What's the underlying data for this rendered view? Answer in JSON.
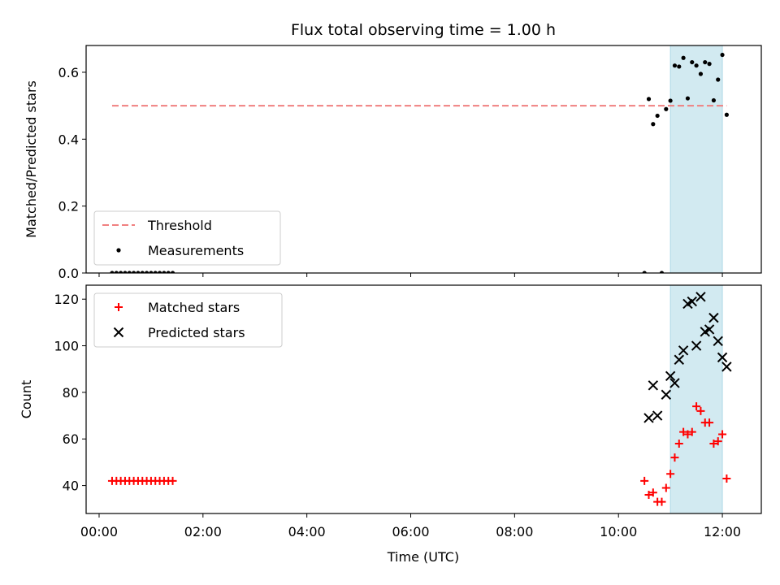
{
  "chart_data": {
    "title": "Flux total observing time = 1.00 h",
    "xlabel": "Time (UTC)",
    "x_ticks": [
      "00:00",
      "02:00",
      "04:00",
      "06:00",
      "08:00",
      "10:00",
      "12:00"
    ],
    "xlim": [
      "23:45",
      "12:45"
    ],
    "highlight_window": [
      "11:00",
      "12:00"
    ],
    "highlight_color": "#add8e6",
    "panels": [
      {
        "type": "scatter",
        "ylabel": "Matched/Predicted stars",
        "ylim": [
          0,
          0.68
        ],
        "y_ticks": [
          "0.0",
          "0.2",
          "0.4",
          "0.6"
        ],
        "legend_position": "lower left",
        "threshold": {
          "name": "Threshold",
          "value": 0.5,
          "x_range": [
            "00:15",
            "12:05"
          ],
          "color": "#f08080"
        },
        "series": [
          {
            "name": "Measurements",
            "color": "#000000",
            "marker": "dot",
            "points": [
              [
                "00:15",
                0
              ],
              [
                "00:20",
                0
              ],
              [
                "00:25",
                0
              ],
              [
                "00:30",
                0
              ],
              [
                "00:35",
                0
              ],
              [
                "00:40",
                0
              ],
              [
                "00:45",
                0
              ],
              [
                "00:50",
                0
              ],
              [
                "00:55",
                0
              ],
              [
                "01:00",
                0
              ],
              [
                "01:05",
                0
              ],
              [
                "01:10",
                0
              ],
              [
                "01:15",
                0
              ],
              [
                "01:20",
                0
              ],
              [
                "01:25",
                0
              ],
              [
                "10:30",
                0
              ],
              [
                "10:50",
                0
              ],
              [
                "10:35",
                0.52
              ],
              [
                "10:40",
                0.445
              ],
              [
                "10:45",
                0.47
              ],
              [
                "10:55",
                0.49
              ],
              [
                "11:00",
                0.515
              ],
              [
                "11:05",
                0.62
              ],
              [
                "11:10",
                0.617
              ],
              [
                "11:15",
                0.643
              ],
              [
                "11:20",
                0.522
              ],
              [
                "11:25",
                0.63
              ],
              [
                "11:30",
                0.62
              ],
              [
                "11:35",
                0.595
              ],
              [
                "11:40",
                0.63
              ],
              [
                "11:45",
                0.625
              ],
              [
                "11:50",
                0.516
              ],
              [
                "11:55",
                0.578
              ],
              [
                "12:00",
                0.652
              ],
              [
                "12:05",
                0.473
              ]
            ]
          }
        ]
      },
      {
        "type": "scatter",
        "ylabel": "Count",
        "ylim": [
          28,
          126
        ],
        "y_ticks": [
          "40",
          "60",
          "80",
          "100",
          "120"
        ],
        "legend_position": "upper left",
        "series": [
          {
            "name": "Matched stars",
            "color": "#ff0000",
            "marker": "plus",
            "points": [
              [
                "00:15",
                42
              ],
              [
                "00:20",
                42
              ],
              [
                "00:25",
                42
              ],
              [
                "00:30",
                42
              ],
              [
                "00:35",
                42
              ],
              [
                "00:40",
                42
              ],
              [
                "00:45",
                42
              ],
              [
                "00:50",
                42
              ],
              [
                "00:55",
                42
              ],
              [
                "01:00",
                42
              ],
              [
                "01:05",
                42
              ],
              [
                "01:10",
                42
              ],
              [
                "01:15",
                42
              ],
              [
                "01:20",
                42
              ],
              [
                "01:25",
                42
              ],
              [
                "10:30",
                42
              ],
              [
                "10:35",
                36
              ],
              [
                "10:40",
                37
              ],
              [
                "10:45",
                33
              ],
              [
                "10:50",
                33
              ],
              [
                "10:55",
                39
              ],
              [
                "11:00",
                45
              ],
              [
                "11:05",
                52
              ],
              [
                "11:10",
                58
              ],
              [
                "11:15",
                63
              ],
              [
                "11:20",
                62
              ],
              [
                "11:25",
                63
              ],
              [
                "11:30",
                74
              ],
              [
                "11:35",
                72
              ],
              [
                "11:40",
                67
              ],
              [
                "11:45",
                67
              ],
              [
                "11:50",
                58
              ],
              [
                "11:55",
                59
              ],
              [
                "12:00",
                62
              ],
              [
                "12:05",
                43
              ]
            ]
          },
          {
            "name": "Predicted stars",
            "color": "#000000",
            "marker": "x",
            "points": [
              [
                "10:35",
                69
              ],
              [
                "10:40",
                83
              ],
              [
                "10:45",
                70
              ],
              [
                "10:55",
                79
              ],
              [
                "11:00",
                87
              ],
              [
                "11:05",
                84
              ],
              [
                "11:10",
                94
              ],
              [
                "11:15",
                98
              ],
              [
                "11:20",
                118
              ],
              [
                "11:25",
                119
              ],
              [
                "11:30",
                100
              ],
              [
                "11:35",
                121
              ],
              [
                "11:40",
                106
              ],
              [
                "11:45",
                107
              ],
              [
                "11:50",
                112
              ],
              [
                "11:55",
                102
              ],
              [
                "12:00",
                95
              ],
              [
                "12:05",
                91
              ]
            ]
          }
        ]
      }
    ]
  }
}
